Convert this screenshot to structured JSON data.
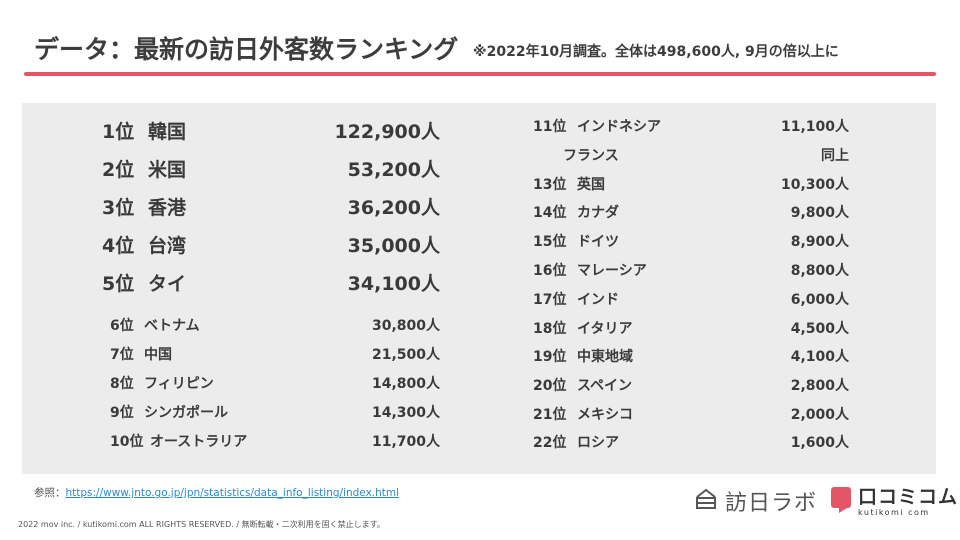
{
  "header": {
    "title": "データ：最新の訪日外客数ランキング",
    "subtitle": "※2022年10月調査。全体は498,600人, 9月の倍以上に"
  },
  "ranking_left_top": [
    {
      "rank": "1位",
      "name": "韓国",
      "value": "122,900人"
    },
    {
      "rank": "2位",
      "name": "米国",
      "value": "53,200人"
    },
    {
      "rank": "3位",
      "name": "香港",
      "value": "36,200人"
    },
    {
      "rank": "4位",
      "name": "台湾",
      "value": "35,000人"
    },
    {
      "rank": "5位",
      "name": "タイ",
      "value": "34,100人"
    }
  ],
  "ranking_left_bottom": [
    {
      "rank": "6位",
      "name": "ベトナム",
      "value": "30,800人"
    },
    {
      "rank": "7位",
      "name": "中国",
      "value": "21,500人"
    },
    {
      "rank": "8位",
      "name": "フィリピン",
      "value": "14,800人"
    },
    {
      "rank": "9位",
      "name": "シンガポール",
      "value": "14,300人"
    },
    {
      "rank": "10位",
      "name": "オーストラリア",
      "value": "11,700人"
    }
  ],
  "ranking_right": [
    {
      "rank": "11位",
      "name": "インドネシア",
      "value": "11,100人"
    },
    {
      "rank": "",
      "name": "フランス",
      "value": "同上"
    },
    {
      "rank": "13位",
      "name": "英国",
      "value": "10,300人"
    },
    {
      "rank": "14位",
      "name": "カナダ",
      "value": "9,800人"
    },
    {
      "rank": "15位",
      "name": "ドイツ",
      "value": "8,900人"
    },
    {
      "rank": "16位",
      "name": "マレーシア",
      "value": "8,800人"
    },
    {
      "rank": "17位",
      "name": "インド",
      "value": "6,000人"
    },
    {
      "rank": "18位",
      "name": "イタリア",
      "value": "4,500人"
    },
    {
      "rank": "19位",
      "name": "中東地域",
      "value": "4,100人"
    },
    {
      "rank": "20位",
      "name": "スペイン",
      "value": "2,800人"
    },
    {
      "rank": "21位",
      "name": "メキシコ",
      "value": "2,000人"
    },
    {
      "rank": "22位",
      "name": "ロシア",
      "value": "1,600人"
    }
  ],
  "footer": {
    "ref_label": "参照：",
    "ref_url": "https://www.jnto.go.jp/jpn/statistics/data_info_listing/index.html",
    "copyright": "2022 mov inc. / kutikomi.com ALL RIGHTS RESERVED. / 無断転載・二次利用を固く禁止します。"
  },
  "logos": {
    "houjin_lab": "訪日ラボ",
    "kutikomu_jp": "口コミコム",
    "kutikomu_en": "kutikomi com",
    "brand_color": "#e5556a",
    "accent_rule_color": "#e5556a"
  }
}
